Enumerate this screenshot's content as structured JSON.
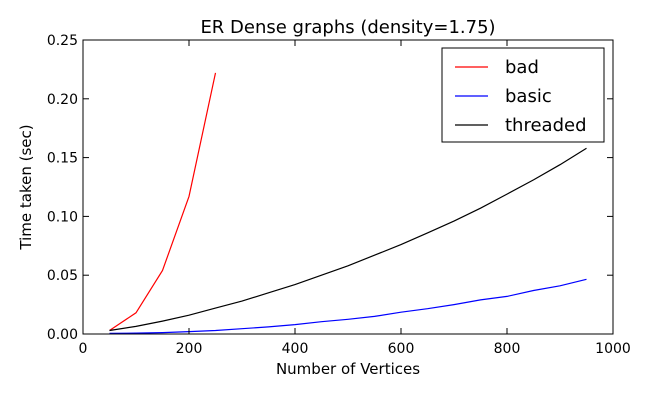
{
  "chart_data": {
    "type": "line",
    "title": "ER Dense graphs (density=1.75)",
    "xlabel": "Number of Vertices",
    "ylabel": "Time taken (sec)",
    "xlim": [
      0,
      1000
    ],
    "ylim": [
      0,
      0.25
    ],
    "xticks": [
      0,
      200,
      400,
      600,
      800,
      1000
    ],
    "xtick_labels": [
      "0",
      "200",
      "400",
      "600",
      "800",
      "1000"
    ],
    "yticks": [
      0,
      0.05,
      0.1,
      0.15,
      0.2,
      0.25
    ],
    "ytick_labels": [
      "0.00",
      "0.05",
      "0.10",
      "0.15",
      "0.20",
      "0.25"
    ],
    "grid": false,
    "legend_position": "top-right",
    "series": [
      {
        "name": "bad",
        "color": "#ff0000",
        "x": [
          50,
          100,
          150,
          200,
          250
        ],
        "y": [
          0.003,
          0.018,
          0.054,
          0.117,
          0.222
        ]
      },
      {
        "name": "basic",
        "color": "#0000ff",
        "x": [
          50,
          100,
          150,
          200,
          250,
          300,
          350,
          400,
          450,
          500,
          550,
          600,
          650,
          700,
          750,
          800,
          850,
          900,
          950
        ],
        "y": [
          0.0005,
          0.0008,
          0.0012,
          0.002,
          0.003,
          0.0045,
          0.006,
          0.008,
          0.0105,
          0.0125,
          0.015,
          0.0185,
          0.0215,
          0.025,
          0.029,
          0.032,
          0.037,
          0.041,
          0.0465
        ]
      },
      {
        "name": "threaded",
        "color": "#000000",
        "x": [
          50,
          100,
          150,
          200,
          250,
          300,
          350,
          400,
          450,
          500,
          550,
          600,
          650,
          700,
          750,
          800,
          850,
          900,
          950
        ],
        "y": [
          0.003,
          0.0065,
          0.011,
          0.016,
          0.022,
          0.028,
          0.035,
          0.042,
          0.05,
          0.058,
          0.067,
          0.076,
          0.086,
          0.096,
          0.107,
          0.119,
          0.131,
          0.144,
          0.158
        ]
      }
    ]
  }
}
